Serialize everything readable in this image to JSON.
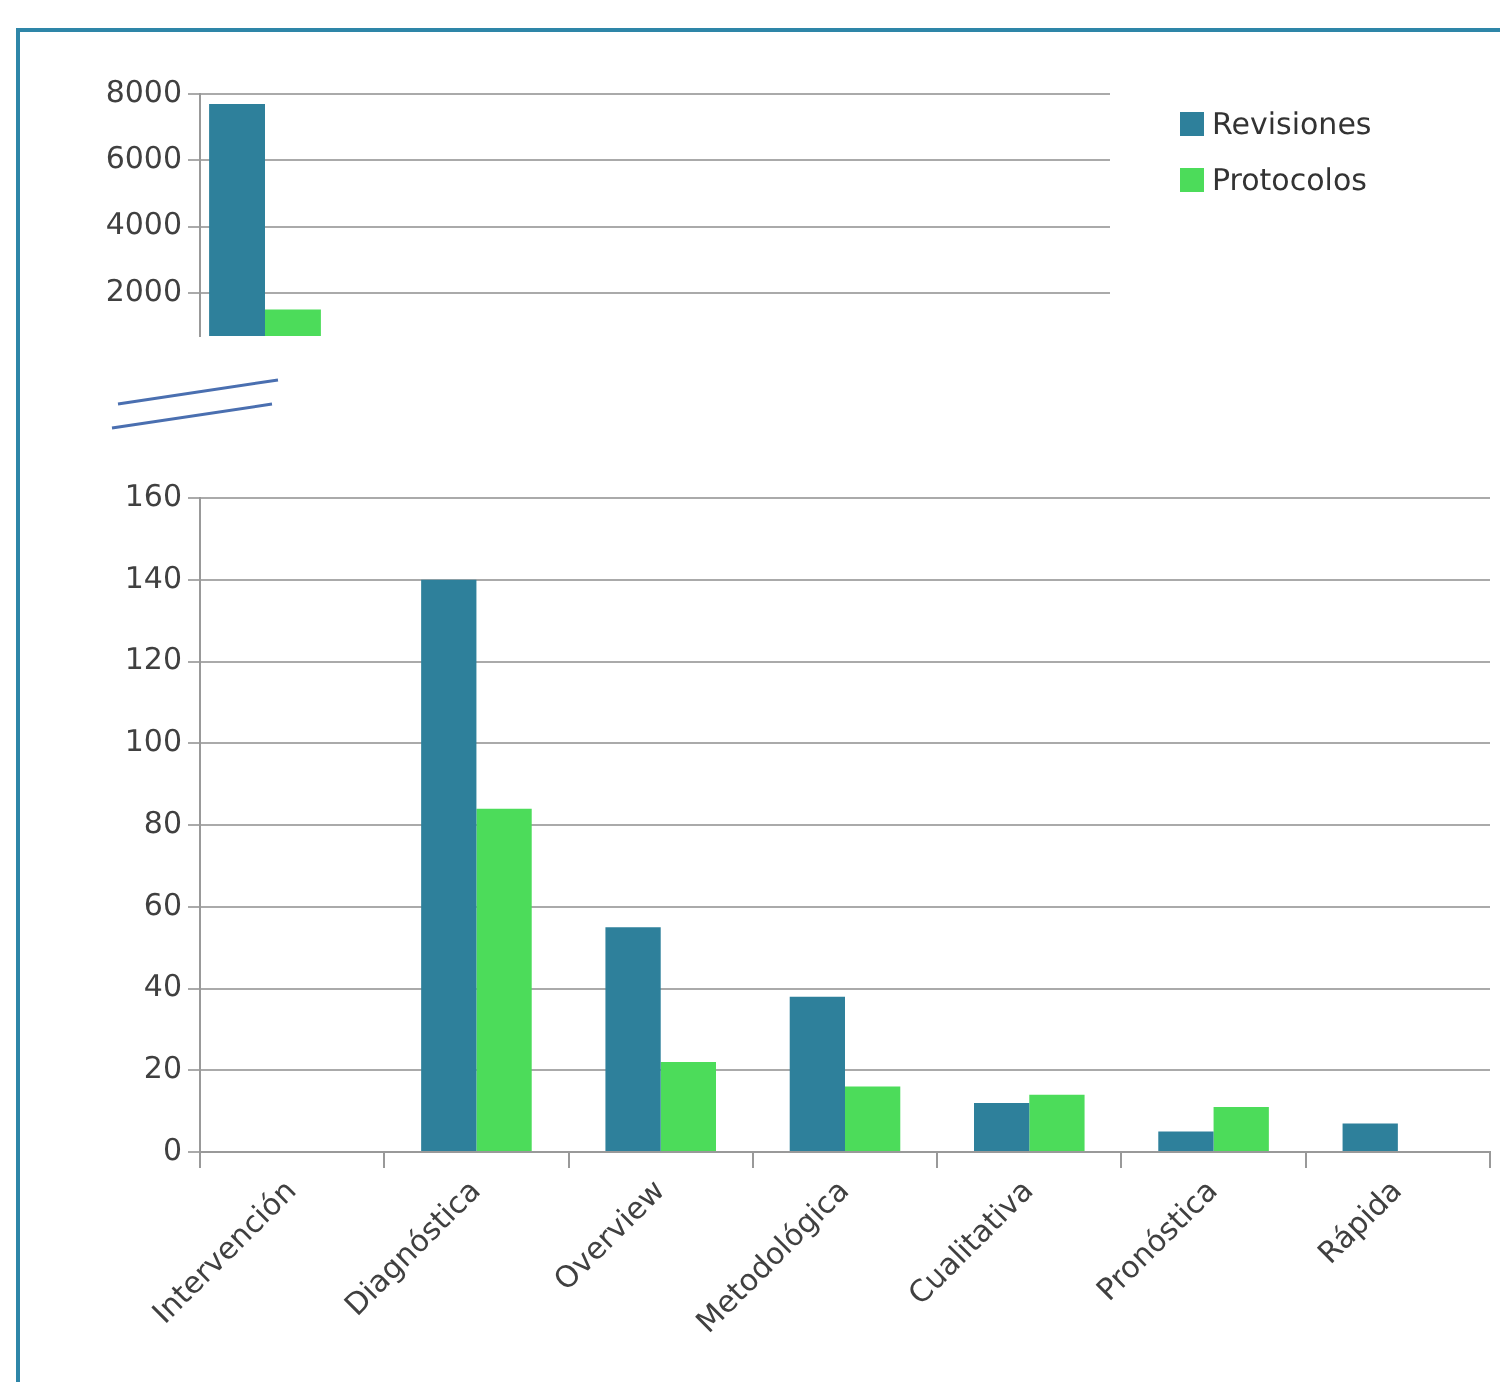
{
  "chart_data": [
    {
      "type": "bar",
      "series": [
        {
          "name": "Revisiones",
          "color": "#2e809b",
          "values": [
            7700,
            null,
            null,
            null,
            null,
            null,
            null
          ]
        },
        {
          "name": "Protocolos",
          "color": "#4cdc5a",
          "values": [
            1500,
            null,
            null,
            null,
            null,
            null,
            null
          ]
        }
      ],
      "ylim": [
        700,
        8000
      ],
      "yticks": [
        2000,
        4000,
        6000,
        8000
      ],
      "grid": "y",
      "legend": "top right",
      "tick_labels": "y"
    },
    {
      "type": "bar",
      "categories": [
        "Intervención",
        "Diagnóstica",
        "Overview",
        "Metodológica",
        "Cualitativa",
        "Pronóstica",
        "Rápida"
      ],
      "series": [
        {
          "color": "#2e809b",
          "values": [
            null,
            140,
            55,
            38,
            12,
            5,
            7
          ]
        },
        {
          "color": "#4cdc5a",
          "values": [
            null,
            84,
            22,
            16,
            14,
            11,
            null
          ]
        }
      ],
      "ylim": [
        0,
        160
      ],
      "yticks": [
        0,
        20,
        40,
        60,
        80,
        100,
        120,
        140,
        160
      ],
      "grid": "y"
    }
  ]
}
